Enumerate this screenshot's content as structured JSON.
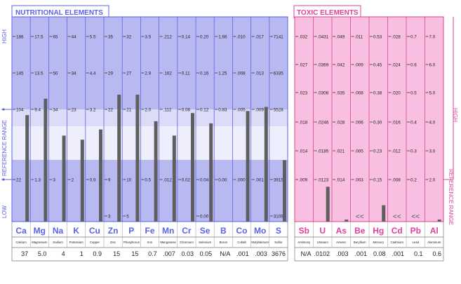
{
  "colors": {
    "nutr_line": "#5b62e8",
    "nutr_band_dark": "#b9b9f1",
    "nutr_band_mid": "#dcdcf8",
    "nutr_band_light": "#eeeefc",
    "toxic_line": "#e0409a",
    "toxic_fill": "#f8bfe0",
    "toxic_fill_light": "#fbe0ef",
    "bar": "#5f5f5f",
    "text": "#222222"
  },
  "nutritional": {
    "title": "NUTRITIONAL ELEMENTS",
    "axis_high": "HIGH",
    "axis_range": "REFERENCE RANGE",
    "axis_low": "LOW"
  },
  "toxic": {
    "title": "TOXIC ELEMENTS",
    "axis_high": "HIGH",
    "axis_range": "REFERENCE RANGE",
    "low_marker": "<<"
  },
  "chart_data": [
    {
      "type": "bar",
      "title": "NUTRITIONAL ELEMENTS",
      "row_keys": [
        "r186",
        "r145",
        "r104",
        "r22",
        "rlow"
      ],
      "categories": [
        {
          "symbol": "Ca",
          "name": "Calcium",
          "result": "37",
          "ticks": {
            "r186": "186",
            "r145": "145",
            "r104": "104",
            "r22": "22"
          },
          "bar_level": 0.52
        },
        {
          "symbol": "Mg",
          "name": "Magnesium",
          "result": "5.0",
          "ticks": {
            "r186": "17.5",
            "r145": "13.5",
            "r104": "9.4",
            "r22": "1.3"
          },
          "bar_level": 0.6
        },
        {
          "symbol": "Na",
          "name": "Sodium",
          "result": "4",
          "ticks": {
            "r186": "65",
            "r145": "50",
            "r104": "34",
            "r22": "3"
          },
          "bar_level": 0.42
        },
        {
          "symbol": "K",
          "name": "Potassium",
          "result": "1",
          "ticks": {
            "r186": "44",
            "r145": "34",
            "r104": "23",
            "r22": "2"
          },
          "bar_level": 0.4
        },
        {
          "symbol": "Cu",
          "name": "Copper",
          "result": "0.9",
          "ticks": {
            "r186": "5.5",
            "r145": "4.4",
            "r104": "3.2",
            "r22": "0.9"
          },
          "bar_level": 0.45
        },
        {
          "symbol": "Zn",
          "name": "Zinc",
          "result": "15",
          "ticks": {
            "r186": "35",
            "r145": "29",
            "r104": "22",
            "r22": "9",
            "rlow": "3"
          },
          "bar_level": 0.62
        },
        {
          "symbol": "P",
          "name": "Phosphorus",
          "result": "15",
          "ticks": {
            "r186": "32",
            "r145": "27",
            "r104": "21",
            "r22": "10",
            "rlow": "5"
          },
          "bar_level": 0.62
        },
        {
          "symbol": "Fe",
          "name": "Iron",
          "result": "0.7",
          "ticks": {
            "r186": "3.5",
            "r145": "2.9",
            "r104": "2.0",
            "r22": "0.5"
          },
          "bar_level": 0.49
        },
        {
          "symbol": "Mn",
          "name": "Manganese",
          "result": ".007",
          "ticks": {
            "r186": ".212",
            "r145": ".162",
            "r104": ".112",
            "r22": ".012"
          },
          "bar_level": 0.42
        },
        {
          "symbol": "Cr",
          "name": "Chromium",
          "result": "0.03",
          "ticks": {
            "r186": "0.14",
            "r145": "0.11",
            "r104": "0.08",
            "r22": "0.02"
          },
          "bar_level": 0.53
        },
        {
          "symbol": "Se",
          "name": "Selenium",
          "result": "0.05",
          "ticks": {
            "r186": "0.20",
            "r145": "0.16",
            "r104": "0.12",
            "r22": "0.04",
            "rlow": "0.00"
          },
          "bar_level": 0.48
        },
        {
          "symbol": "B",
          "name": "Boron",
          "result": "N/A",
          "ticks": {
            "r186": "1.66",
            "r145": "1.25",
            "r104": "0.83",
            "r22": "0.00"
          },
          "bar_level": null
        },
        {
          "symbol": "Co",
          "name": "Cobalt",
          "result": ".001",
          "ticks": {
            "r186": ".010",
            "r145": ".008",
            "r104": ".005",
            "r22": ".000"
          },
          "bar_level": 0.54
        },
        {
          "symbol": "Mo",
          "name": "Molybdenum",
          "result": ".003",
          "ticks": {
            "r186": ".017",
            "r145": ".013",
            "r104": ".009",
            "r22": ".001"
          },
          "bar_level": 0.56
        },
        {
          "symbol": "S",
          "name": "Sulfur",
          "result": "3676",
          "ticks": {
            "r186": "7141",
            "r145": "6335",
            "r104": "5528",
            "r22": "3915",
            "rlow": "3109"
          },
          "bar_level": 0.3
        }
      ]
    },
    {
      "type": "bar",
      "title": "TOXIC ELEMENTS",
      "row_keys": [
        "t7",
        "t6",
        "t5",
        "t4",
        "t3",
        "t2"
      ],
      "right_axis": {
        "t7": "7.0",
        "t6": "6.0",
        "t5": "5.0",
        "t4": "4.0",
        "t3": "3.0",
        "t2": "2.0"
      },
      "categories": [
        {
          "symbol": "Sb",
          "name": "Antimony",
          "result": "N/A",
          "ticks": {
            "t7": ".032",
            "t6": ".027",
            "t5": ".023",
            "t4": ".018",
            "t3": ".014",
            "t2": ".009"
          },
          "bar_level": null,
          "low_flag": false
        },
        {
          "symbol": "U",
          "name": "Uranium",
          "result": ".0102",
          "ticks": {
            "t7": ".0431",
            "t6": ".0369",
            "t5": ".0308",
            "t4": ".0246",
            "t3": ".0185",
            "t2": ".0123"
          },
          "bar_level": 0.17,
          "low_flag": false
        },
        {
          "symbol": "As",
          "name": "Arsenic",
          "result": ".003",
          "ticks": {
            "t7": ".049",
            "t6": ".042",
            "t5": ".035",
            "t4": ".028",
            "t3": ".021",
            "t2": ".014"
          },
          "bar_level": 0.01,
          "low_flag": false
        },
        {
          "symbol": "Be",
          "name": "Beryllium",
          "result": ".001",
          "ticks": {
            "t7": ".011",
            "t6": ".009",
            "t5": ".008",
            "t4": ".006",
            "t3": ".005",
            "t2": ".003"
          },
          "bar_level": null,
          "low_flag": true
        },
        {
          "symbol": "Hg",
          "name": "Mercury",
          "result": "0.08",
          "ticks": {
            "t7": "0.53",
            "t6": "0.45",
            "t5": "0.38",
            "t4": "0.30",
            "t3": "0.23",
            "t2": "0.15"
          },
          "bar_level": 0.08,
          "low_flag": false
        },
        {
          "symbol": "Cd",
          "name": "Cadmium",
          "result": ".001",
          "ticks": {
            "t7": ".028",
            "t6": ".024",
            "t5": ".020",
            "t4": ".016",
            "t3": ".012",
            "t2": ".008"
          },
          "bar_level": null,
          "low_flag": true
        },
        {
          "symbol": "Pb",
          "name": "Lead",
          "result": "0.1",
          "ticks": {
            "t7": "0.7",
            "t6": "0.6",
            "t5": "0.5",
            "t4": "0.4",
            "t3": "0.3",
            "t2": "0.2"
          },
          "bar_level": null,
          "low_flag": true
        },
        {
          "symbol": "Al",
          "name": "Aluminum",
          "result": "0.6",
          "ticks": {
            "t7": "7.0",
            "t6": "6.0",
            "t5": "5.0",
            "t4": "4.0",
            "t3": "3.0",
            "t2": "2.0"
          },
          "bar_level": 0.01,
          "low_flag": false
        }
      ]
    }
  ]
}
